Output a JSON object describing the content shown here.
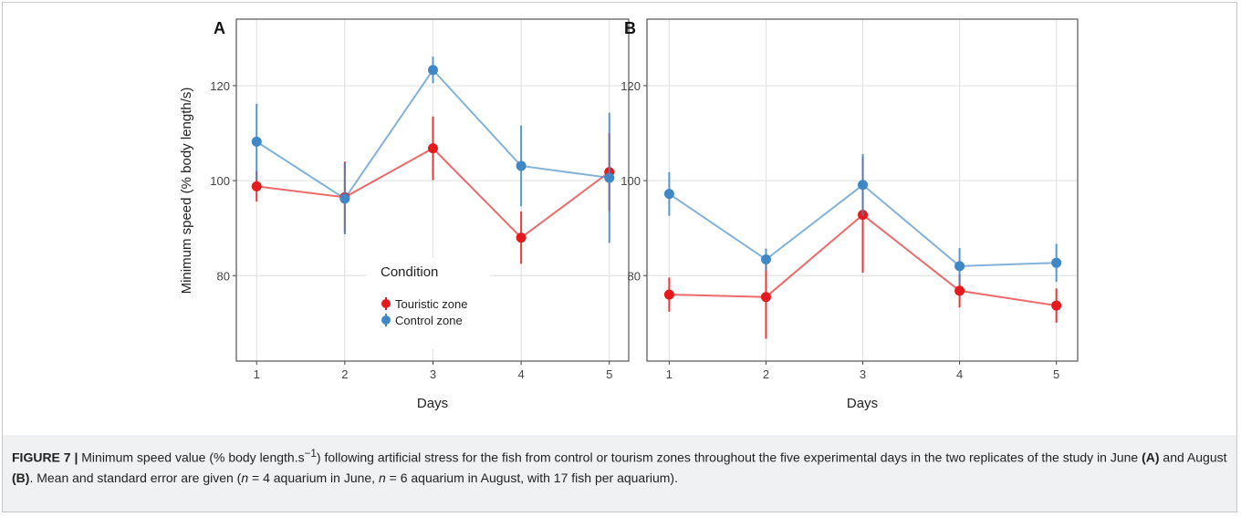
{
  "chart_data": [
    {
      "type": "line",
      "panel_label": "A",
      "y_label": "Minimum speed (% body length/s)",
      "x_label": "Days",
      "legend_title": "Condition",
      "x": [
        1,
        2,
        3,
        4,
        5
      ],
      "xlim": [
        0.77,
        5.22
      ],
      "xticks": [
        1,
        2,
        3,
        4,
        5
      ],
      "ylim": [
        62,
        134
      ],
      "yticks": [
        80,
        100,
        120
      ],
      "grid": true,
      "series": [
        {
          "name": "Touristic zone",
          "color": "#e41a1c",
          "values": [
            98.8,
            96.5,
            106.8,
            88,
            101.8
          ],
          "errors": [
            3.2,
            7.5,
            6.7,
            5.5,
            8.2
          ]
        },
        {
          "name": "Control zone",
          "color": "#3f88c5",
          "values": [
            108.2,
            96.2,
            123.3,
            103.1,
            100.6
          ],
          "errors": [
            8,
            7.5,
            2.8,
            8.5,
            13.7
          ]
        }
      ]
    },
    {
      "type": "line",
      "panel_label": "B",
      "x_label": "Days",
      "x": [
        1,
        2,
        3,
        4,
        5
      ],
      "xlim": [
        0.77,
        5.22
      ],
      "xticks": [
        1,
        2,
        3,
        4,
        5
      ],
      "ylim": [
        62,
        134
      ],
      "yticks": [
        80,
        100,
        120
      ],
      "grid": true,
      "series": [
        {
          "color": "#e41a1c",
          "values": [
            76,
            75.5,
            92.8,
            76.8,
            73.7
          ],
          "errors": [
            3.6,
            8.8,
            12.2,
            3.5,
            3.6
          ]
        },
        {
          "color": "#3f88c5",
          "values": [
            97.2,
            83.4,
            99.1,
            82,
            82.7
          ],
          "errors": [
            4.6,
            2.3,
            6.5,
            3.8,
            4.0
          ]
        }
      ]
    }
  ],
  "caption": {
    "label": "FIGURE 7 |",
    "parts": [
      " Minimum speed value (% body length.s",
      "−1",
      ") following artificial stress for the fish from control or tourism zones throughout the five experimental days in the two replicates of the study in June ",
      "(A)",
      " and August ",
      "(B)",
      ". Mean and standard error are given (",
      "n",
      " = 4 aquarium in June, ",
      "n",
      " = 6 aquarium in August, with 17 fish per aquarium)."
    ]
  }
}
